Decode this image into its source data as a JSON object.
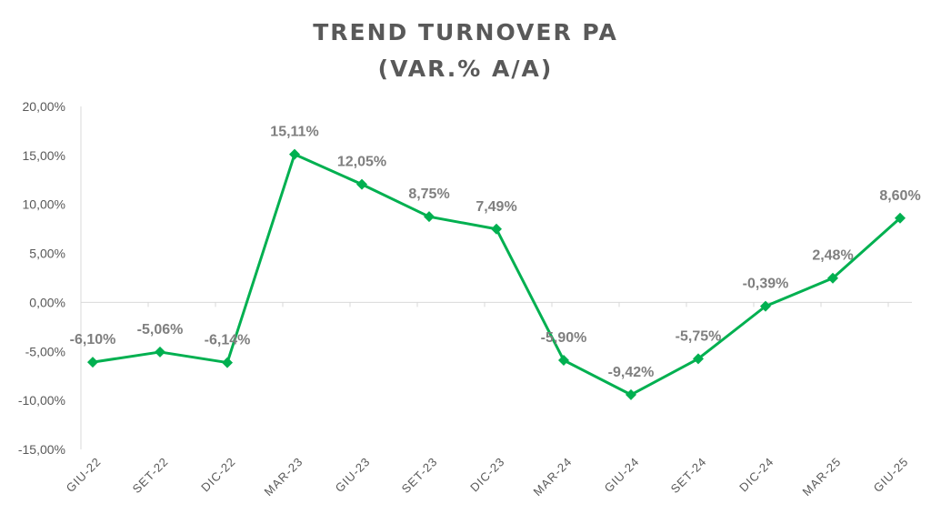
{
  "chart_data": {
    "type": "line",
    "title": [
      "TREND TURNOVER PA",
      "(VAR.% A/A)"
    ],
    "xlabel": "",
    "ylabel": "",
    "categories": [
      "GIU-22",
      "SET-22",
      "DIC-22",
      "MAR-23",
      "GIU-23",
      "SET-23",
      "DIC-23",
      "MAR-24",
      "GIU-24",
      "SET-24",
      "DIC-24",
      "MAR-25",
      "GIU-25"
    ],
    "values": [
      -6.1,
      -5.06,
      -6.14,
      15.11,
      12.05,
      8.75,
      7.49,
      -5.9,
      -9.42,
      -5.75,
      -0.39,
      2.48,
      8.6
    ],
    "data_labels": [
      "-6,10%",
      "-5,06%",
      "-6,14%",
      "15,11%",
      "12,05%",
      "8,75%",
      "7,49%",
      "-5,90%",
      "-9,42%",
      "-5,75%",
      "-0,39%",
      "2,48%",
      "8,60%"
    ],
    "ylim": [
      -15,
      20
    ],
    "yticks": [
      20,
      15,
      10,
      5,
      0,
      -5,
      -10,
      -15
    ],
    "ytick_labels": [
      "20,00%",
      "15,00%",
      "10,00%",
      "5,00%",
      "0,00%",
      "-5,00%",
      "-10,00%",
      "-15,00%"
    ],
    "grid": false,
    "marker": "diamond",
    "colors": {
      "line": "#00b050",
      "labels": "#7f7f7f",
      "axis": "#d9d9d9"
    }
  }
}
